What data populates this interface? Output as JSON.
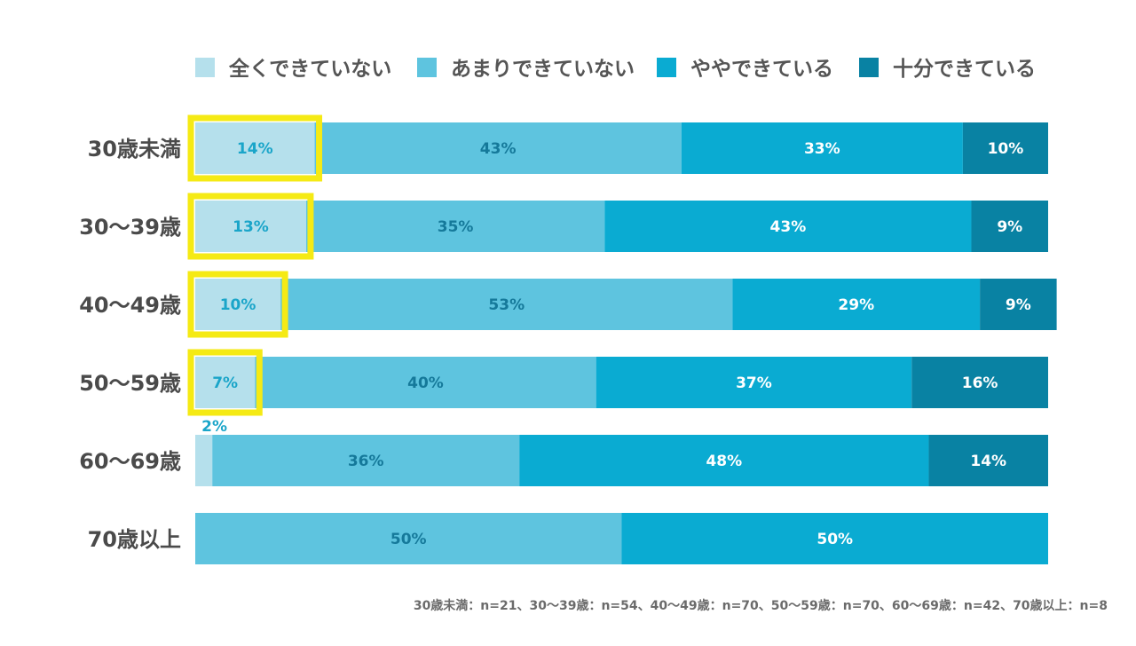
{
  "chart_data": {
    "type": "bar",
    "orientation": "horizontal",
    "stacked": true,
    "normalized_percent": true,
    "categories": [
      "30歳未満",
      "30〜39歳",
      "40〜49歳",
      "50〜59歳",
      "60〜69歳",
      "70歳以上"
    ],
    "series": [
      {
        "name": "全くできていない",
        "color": "#b5e0ec",
        "label_color": "#1aa5c9",
        "values": [
          14,
          13,
          10,
          7,
          2,
          0
        ]
      },
      {
        "name": "あまりできていない",
        "color": "#5ec4df",
        "label_color": "#15799a",
        "values": [
          43,
          35,
          53,
          40,
          36,
          50
        ]
      },
      {
        "name": "ややできている",
        "color": "#0aabd2",
        "label_color": "#ffffff",
        "values": [
          33,
          43,
          29,
          37,
          48,
          50
        ]
      },
      {
        "name": "十分できている",
        "color": "#0982a3",
        "label_color": "#ffffff",
        "values": [
          10,
          9,
          9,
          16,
          14,
          0
        ]
      }
    ],
    "value_suffix": "%",
    "xlim": [
      0,
      100
    ],
    "legend_position": "top",
    "highlight": {
      "series": "全くできていない",
      "categories": [
        "30歳未満",
        "30〜39歳",
        "40〜49歳",
        "50〜59歳"
      ],
      "color": "#f5ea14"
    }
  },
  "footnote": "30歳未満：n=21、30〜39歳：n=54、40〜49歳：n=70、50〜59歳：n=70、60〜69歳：n=42、70歳以上：n=8"
}
